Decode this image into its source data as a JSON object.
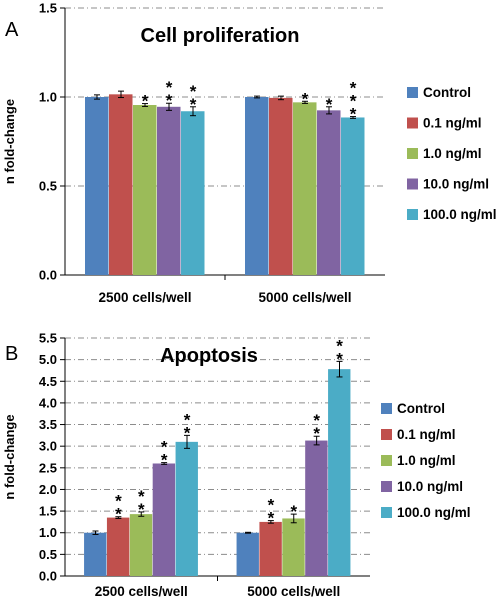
{
  "panels": {
    "a_letter": "A",
    "b_letter": "B"
  },
  "legend": {
    "items": [
      "Control",
      "0.1 ng/ml",
      "1.0 ng/ml",
      "10.0 ng/ml",
      "100.0 ng/ml"
    ],
    "colors": [
      "#4f81bd",
      "#c0504d",
      "#9bbb59",
      "#8064a2",
      "#4bacc6"
    ]
  },
  "chart_data": [
    {
      "type": "bar",
      "title": "Cell proliferation",
      "ylabel": "n fold-change",
      "xlabel": "",
      "ylim": [
        0,
        1.5
      ],
      "yticks": [
        "0.0",
        "0.5",
        "1.0",
        "1.5"
      ],
      "categories": [
        "2500 cells/well",
        "5000 cells/well"
      ],
      "grid": true,
      "legend_position": "right",
      "series": [
        {
          "name": "Control",
          "values": [
            1.0,
            1.0
          ],
          "errors": [
            0.012,
            0.005
          ],
          "marks": [
            "",
            ""
          ]
        },
        {
          "name": "0.1 ng/ml",
          "values": [
            1.015,
            0.995
          ],
          "errors": [
            0.018,
            0.01
          ],
          "marks": [
            "",
            ""
          ]
        },
        {
          "name": "1.0 ng/ml",
          "values": [
            0.955,
            0.97
          ],
          "errors": [
            0.008,
            0.006
          ],
          "marks": [
            "*",
            "*"
          ]
        },
        {
          "name": "10.0 ng/ml",
          "values": [
            0.945,
            0.925
          ],
          "errors": [
            0.02,
            0.02
          ],
          "marks": [
            "**",
            "*"
          ]
        },
        {
          "name": "100.0 ng/ml",
          "values": [
            0.92,
            0.885
          ],
          "errors": [
            0.025,
            0.005
          ],
          "marks": [
            "**",
            "***"
          ]
        }
      ]
    },
    {
      "type": "bar",
      "title": "Apoptosis",
      "ylabel": "n fold-change",
      "xlabel": "",
      "ylim": [
        0,
        5.5
      ],
      "yticks": [
        "0.0",
        "0.5",
        "1.0",
        "1.5",
        "2.0",
        "2.5",
        "3.0",
        "3.5",
        "4.0",
        "4.5",
        "5.0",
        "5.5"
      ],
      "categories": [
        "2500 cells/well",
        "5000 cells/well"
      ],
      "grid": true,
      "legend_position": "right",
      "series": [
        {
          "name": "Control",
          "values": [
            1.0,
            1.0
          ],
          "errors": [
            0.04,
            0.01
          ],
          "marks": [
            "",
            ""
          ]
        },
        {
          "name": "0.1 ng/ml",
          "values": [
            1.35,
            1.25
          ],
          "errors": [
            0.02,
            0.03
          ],
          "marks": [
            "**",
            "**"
          ]
        },
        {
          "name": "1.0 ng/ml",
          "values": [
            1.43,
            1.33
          ],
          "errors": [
            0.05,
            0.1
          ],
          "marks": [
            "**",
            "*"
          ]
        },
        {
          "name": "10.0 ng/ml",
          "values": [
            2.6,
            3.13
          ],
          "errors": [
            0.02,
            0.1
          ],
          "marks": [
            "**",
            "**"
          ]
        },
        {
          "name": "100.0 ng/ml",
          "values": [
            3.1,
            4.78
          ],
          "errors": [
            0.15,
            0.18
          ],
          "marks": [
            "**",
            "**"
          ]
        }
      ]
    }
  ]
}
